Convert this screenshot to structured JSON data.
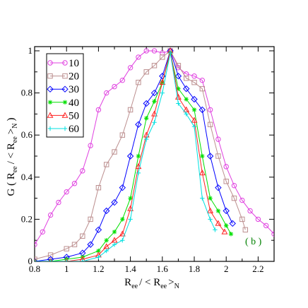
{
  "chart_data": {
    "type": "line",
    "xlim": [
      0.8,
      2.3
    ],
    "ylim": [
      0,
      1.02
    ],
    "xticks": [
      0.8,
      1.0,
      1.2,
      1.4,
      1.6,
      1.8,
      2.0,
      2.2
    ],
    "xtick_labels": [
      "0.8",
      "1",
      "1.2",
      "1.4",
      "1.6",
      "1.8",
      "2",
      "2.2"
    ],
    "yticks": [
      0,
      0.2,
      0.4,
      0.6,
      0.8,
      1.0
    ],
    "ytick_labels": [
      "0",
      "0.2",
      "0.4",
      "0.6",
      "0.8",
      "1"
    ],
    "xlabel": {
      "main": "R",
      "sub1": "ee",
      "mid": "/ < R",
      "sub2": "ee",
      "end": ">",
      "sub3": "N"
    },
    "ylabel": "G ( R_ee / < R_ee >_N )",
    "ylabel_parts": {
      "a": "G ( R",
      "b": "ee",
      "c": "/ < R",
      "d": "ee",
      "e": ">",
      "f": "N",
      "g": ")"
    },
    "annotation": "( b )",
    "annotation_color": "#008000",
    "legend_position": "top-left",
    "series": [
      {
        "name": "10",
        "color": "#e040e0",
        "marker": "circle",
        "x": [
          0.8,
          0.85,
          0.9,
          0.95,
          1.0,
          1.05,
          1.1,
          1.15,
          1.2,
          1.25,
          1.3,
          1.35,
          1.4,
          1.45,
          1.5,
          1.55,
          1.6,
          1.65,
          1.7,
          1.75,
          1.8,
          1.85,
          1.9,
          1.95,
          2.0,
          2.05,
          2.1,
          2.15,
          2.2,
          2.25,
          2.3
        ],
        "y": [
          0.08,
          0.14,
          0.22,
          0.28,
          0.33,
          0.37,
          0.43,
          0.55,
          0.72,
          0.8,
          0.83,
          0.86,
          0.92,
          0.97,
          1.0,
          1.0,
          0.99,
          1.0,
          0.92,
          0.89,
          0.88,
          0.86,
          0.72,
          0.58,
          0.45,
          0.36,
          0.29,
          0.24,
          0.2,
          0.17,
          0.13
        ]
      },
      {
        "name": "20",
        "color": "#bc8f8f",
        "marker": "square",
        "x": [
          0.8,
          0.9,
          1.0,
          1.05,
          1.1,
          1.15,
          1.2,
          1.25,
          1.3,
          1.35,
          1.4,
          1.45,
          1.5,
          1.55,
          1.6,
          1.65,
          1.7,
          1.75,
          1.8,
          1.85,
          1.9,
          1.95,
          2.0,
          2.05,
          2.1,
          2.12
        ],
        "y": [
          0.01,
          0.03,
          0.06,
          0.08,
          0.12,
          0.2,
          0.35,
          0.46,
          0.52,
          0.6,
          0.72,
          0.85,
          0.9,
          0.93,
          0.97,
          1.0,
          0.93,
          0.87,
          0.85,
          0.82,
          0.65,
          0.5,
          0.38,
          0.3,
          0.2,
          0.15
        ]
      },
      {
        "name": "30",
        "color": "#0000ff",
        "marker": "diamond",
        "x": [
          0.8,
          0.9,
          1.0,
          1.1,
          1.15,
          1.2,
          1.25,
          1.3,
          1.35,
          1.4,
          1.45,
          1.5,
          1.55,
          1.6,
          1.65,
          1.7,
          1.75,
          1.8,
          1.85,
          1.9,
          1.95,
          2.0,
          2.04
        ],
        "y": [
          0.0,
          0.01,
          0.02,
          0.04,
          0.08,
          0.15,
          0.24,
          0.28,
          0.35,
          0.5,
          0.65,
          0.75,
          0.8,
          0.88,
          1.0,
          0.88,
          0.82,
          0.77,
          0.72,
          0.5,
          0.35,
          0.24,
          0.18
        ]
      },
      {
        "name": "40",
        "color": "#00e000",
        "marker": "star",
        "x": [
          0.8,
          0.9,
          1.0,
          1.1,
          1.2,
          1.25,
          1.3,
          1.35,
          1.4,
          1.45,
          1.5,
          1.55,
          1.6,
          1.65,
          1.7,
          1.75,
          1.8,
          1.85,
          1.9,
          1.95,
          2.0,
          2.03
        ],
        "y": [
          0.0,
          0.0,
          0.01,
          0.02,
          0.05,
          0.1,
          0.14,
          0.2,
          0.3,
          0.5,
          0.68,
          0.76,
          0.85,
          0.99,
          0.82,
          0.77,
          0.72,
          0.5,
          0.3,
          0.24,
          0.17,
          0.13
        ]
      },
      {
        "name": "50",
        "color": "#ff2020",
        "marker": "triangle",
        "x": [
          0.8,
          0.9,
          1.0,
          1.1,
          1.2,
          1.25,
          1.3,
          1.35,
          1.4,
          1.45,
          1.5,
          1.55,
          1.6,
          1.65,
          1.7,
          1.75,
          1.8,
          1.85,
          1.9,
          1.95,
          1.99
        ],
        "y": [
          0.0,
          0.0,
          0.0,
          0.01,
          0.03,
          0.07,
          0.1,
          0.13,
          0.25,
          0.45,
          0.6,
          0.7,
          0.85,
          1.0,
          0.78,
          0.72,
          0.67,
          0.42,
          0.24,
          0.18,
          0.14
        ]
      },
      {
        "name": "60",
        "color": "#00e0e0",
        "marker": "plus",
        "x": [
          0.8,
          0.9,
          1.0,
          1.1,
          1.2,
          1.25,
          1.3,
          1.35,
          1.4,
          1.45,
          1.5,
          1.55,
          1.6,
          1.65,
          1.7,
          1.75,
          1.8,
          1.85,
          1.9,
          1.93
        ],
        "y": [
          0.0,
          0.0,
          0.0,
          0.0,
          0.02,
          0.05,
          0.08,
          0.1,
          0.2,
          0.42,
          0.58,
          0.66,
          0.8,
          0.99,
          0.75,
          0.7,
          0.64,
          0.3,
          0.2,
          0.15
        ]
      }
    ]
  }
}
